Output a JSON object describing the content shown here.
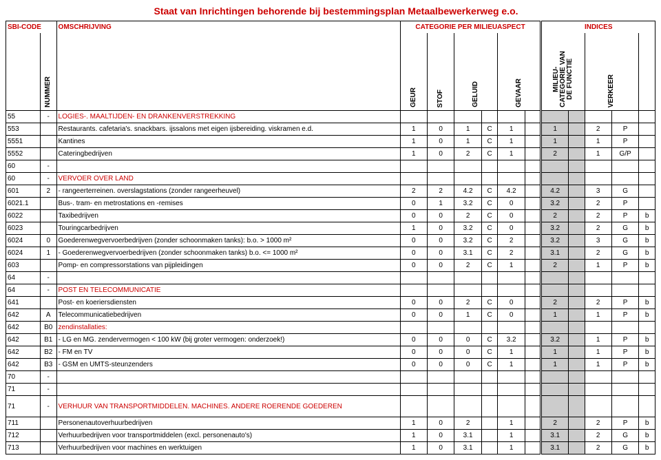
{
  "title": "Staat van Inrichtingen behorende bij bestemmingsplan Metaalbewerkerweg e.o.",
  "headers": {
    "sbi": "SBI-CODE",
    "oms": "OMSCHRIJVING",
    "cat": "CATEGORIE PER MILIEUASPECT",
    "idx": "INDICES",
    "nummer": "NUMMER",
    "geur": "GEUR",
    "stof": "STOF",
    "geluid": "GELUID",
    "gevaar": "GEVAAR",
    "milieu": "MILIEU-\nCATEGORIE VAN\nDE FUNCTIE",
    "verkeer": "VERKEER"
  },
  "rows": [
    {
      "sbi": "55",
      "num": "-",
      "desc": "LOGIES-. MAALTIJDEN- EN DRANKENVERSTREKKING",
      "red": 1
    },
    {
      "sbi": "553",
      "desc": "Restaurants. cafetaria's. snackbars. ijssalons met eigen ijsbereiding. viskramen e.d.",
      "v": [
        "1",
        "0",
        "1",
        "C",
        "1",
        "",
        "1",
        "",
        "2",
        "P",
        ""
      ]
    },
    {
      "sbi": "5551",
      "desc": "Kantines",
      "v": [
        "1",
        "0",
        "1",
        "C",
        "1",
        "",
        "1",
        "",
        "1",
        "P",
        ""
      ]
    },
    {
      "sbi": "5552",
      "desc": "Cateringbedrijven",
      "v": [
        "1",
        "0",
        "2",
        "C",
        "1",
        "",
        "2",
        "",
        "1",
        "G/P",
        ""
      ]
    },
    {
      "sbi": "60",
      "num": "-",
      "red": 1
    },
    {
      "sbi": "60",
      "num": "-",
      "desc": "VERVOER OVER LAND",
      "red": 1
    },
    {
      "sbi": "601",
      "num": "2",
      "desc": "- rangeerterreinen. overslagstations (zonder rangeerheuvel)",
      "v": [
        "2",
        "2",
        "4.2",
        "C",
        "4.2",
        "",
        "4.2",
        "",
        "3",
        "G",
        ""
      ]
    },
    {
      "sbi": "6021.1",
      "desc": "Bus-. tram- en metrostations en -remises",
      "v": [
        "0",
        "1",
        "3.2",
        "C",
        "0",
        "",
        "3.2",
        "",
        "2",
        "P",
        ""
      ]
    },
    {
      "sbi": "6022",
      "desc": "Taxibedrijven",
      "v": [
        "0",
        "0",
        "2",
        "C",
        "0",
        "",
        "2",
        "",
        "2",
        "P",
        "b"
      ]
    },
    {
      "sbi": "6023",
      "desc": "Touringcarbedrijven",
      "v": [
        "1",
        "0",
        "3.2",
        "C",
        "0",
        "",
        "3.2",
        "",
        "2",
        "G",
        "b"
      ]
    },
    {
      "sbi": "6024",
      "num": "0",
      "desc": "Goederenwegvervoerbedrijven (zonder schoonmaken tanks): b.o. > 1000 m²",
      "v": [
        "0",
        "0",
        "3.2",
        "C",
        "2",
        "",
        "3.2",
        "",
        "3",
        "G",
        "b"
      ]
    },
    {
      "sbi": "6024",
      "num": "1",
      "desc": "- Goederenwegvervoerbedrijven (zonder schoonmaken tanks) b.o. <= 1000 m²",
      "v": [
        "0",
        "0",
        "3.1",
        "C",
        "2",
        "",
        "3.1",
        "",
        "2",
        "G",
        "b"
      ]
    },
    {
      "sbi": "603",
      "desc": "Pomp- en compressorstations van pijpleidingen",
      "v": [
        "0",
        "0",
        "2",
        "C",
        "1",
        "",
        "2",
        "",
        "1",
        "P",
        "b"
      ]
    },
    {
      "sbi": "64",
      "num": "-",
      "red": 1
    },
    {
      "sbi": "64",
      "num": "-",
      "desc": "POST EN TELECOMMUNICATIE",
      "red": 1
    },
    {
      "sbi": "641",
      "desc": "Post- en koeriersdiensten",
      "v": [
        "0",
        "0",
        "2",
        "C",
        "0",
        "",
        "2",
        "",
        "2",
        "P",
        "b"
      ]
    },
    {
      "sbi": "642",
      "num": "A",
      "desc": "Telecommunicatiebedrijven",
      "v": [
        "0",
        "0",
        "1",
        "C",
        "0",
        "",
        "1",
        "",
        "1",
        "P",
        "b"
      ]
    },
    {
      "sbi": "642",
      "num": "B0",
      "desc": "zendinstallaties:",
      "red": 1
    },
    {
      "sbi": "642",
      "num": "B1",
      "desc": "- LG en MG. zendervermogen < 100 kW (bij groter vermogen: onderzoek!)",
      "v": [
        "0",
        "0",
        "0",
        "C",
        "3.2",
        "",
        "3.2",
        "",
        "1",
        "P",
        "b"
      ]
    },
    {
      "sbi": "642",
      "num": "B2",
      "desc": "- FM en TV",
      "v": [
        "0",
        "0",
        "0",
        "C",
        "1",
        "",
        "1",
        "",
        "1",
        "P",
        "b"
      ]
    },
    {
      "sbi": "642",
      "num": "B3",
      "desc": "- GSM en UMTS-steunzenders",
      "v": [
        "0",
        "0",
        "0",
        "C",
        "1",
        "",
        "1",
        "",
        "1",
        "P",
        "b"
      ]
    },
    {
      "sbi": "70",
      "num": "-",
      "red": 1
    },
    {
      "sbi": "71",
      "num": "-",
      "red": 1
    },
    {
      "sbi": "71",
      "num": "-",
      "desc": "VERHUUR VAN TRANSPORTMIDDELEN. MACHINES. ANDERE ROERENDE GOEDEREN",
      "red": 1,
      "tall": 1
    },
    {
      "sbi": "711",
      "desc": "Personenautoverhuurbedrijven",
      "v": [
        "1",
        "0",
        "2",
        "",
        "1",
        "",
        "2",
        "",
        "2",
        "P",
        "b"
      ]
    },
    {
      "sbi": "712",
      "desc": "Verhuurbedrijven voor transportmiddelen (excl. personenauto's)",
      "v": [
        "1",
        "0",
        "3.1",
        "",
        "1",
        "",
        "3.1",
        "",
        "2",
        "G",
        "b"
      ]
    },
    {
      "sbi": "713",
      "desc": "Verhuurbedrijven voor machines en werktuigen",
      "v": [
        "1",
        "0",
        "3.1",
        "",
        "1",
        "",
        "3.1",
        "",
        "2",
        "G",
        "b"
      ]
    }
  ]
}
